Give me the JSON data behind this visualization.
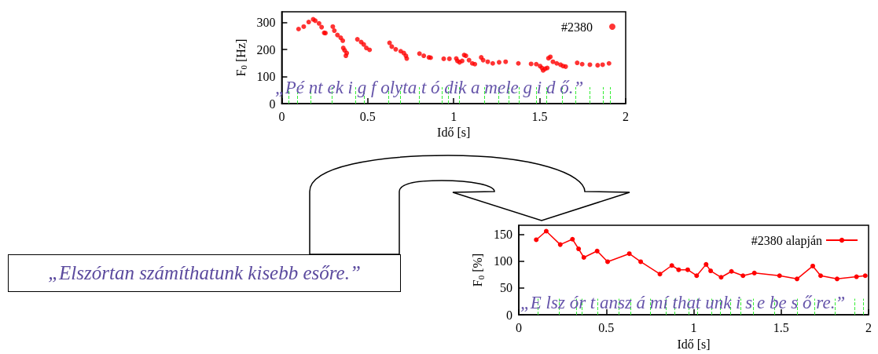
{
  "chart_data": [
    {
      "type": "scatter",
      "xlabel": "Idő [s]",
      "ylabel": "F$_{0}$ [Hz]",
      "xlim": [
        0,
        2
      ],
      "xticks": [
        0,
        0.5,
        1,
        1.5,
        2
      ],
      "ylim": [
        0,
        340
      ],
      "yticks": [
        0,
        100,
        200,
        300
      ],
      "grid": false,
      "legend": "top right",
      "marker": "circle",
      "annotations": [
        "„Pé nt ek i g f olyta t ó dik a mele g i d ő.”"
      ],
      "ref_lines": [
        {
          "axis": "x",
          "value": 0.04,
          "color": "#33ee33",
          "line_style": "dashed"
        },
        {
          "axis": "x",
          "value": 0.09,
          "color": "#33ee33",
          "line_style": "dashed"
        },
        {
          "axis": "x",
          "value": 0.17,
          "color": "#33ee33",
          "line_style": "dashed"
        },
        {
          "axis": "x",
          "value": 0.29,
          "color": "#33ee33",
          "line_style": "dashed"
        },
        {
          "axis": "x",
          "value": 0.43,
          "color": "#33ee33",
          "line_style": "dashed"
        },
        {
          "axis": "x",
          "value": 0.48,
          "color": "#33ee33",
          "line_style": "dashed"
        },
        {
          "axis": "x",
          "value": 0.62,
          "color": "#33ee33",
          "line_style": "dashed"
        },
        {
          "axis": "x",
          "value": 0.69,
          "color": "#33ee33",
          "line_style": "dashed"
        },
        {
          "axis": "x",
          "value": 0.8,
          "color": "#33ee33",
          "line_style": "dashed"
        },
        {
          "axis": "x",
          "value": 0.93,
          "color": "#33ee33",
          "line_style": "dashed"
        },
        {
          "axis": "x",
          "value": 0.97,
          "color": "#33ee33",
          "line_style": "dashed"
        },
        {
          "axis": "x",
          "value": 1.03,
          "color": "#33ee33",
          "line_style": "dashed"
        },
        {
          "axis": "x",
          "value": 1.18,
          "color": "#33ee33",
          "line_style": "dashed"
        },
        {
          "axis": "x",
          "value": 1.26,
          "color": "#33ee33",
          "line_style": "dashed"
        },
        {
          "axis": "x",
          "value": 1.32,
          "color": "#33ee33",
          "line_style": "dashed"
        },
        {
          "axis": "x",
          "value": 1.38,
          "color": "#33ee33",
          "line_style": "dashed"
        },
        {
          "axis": "x",
          "value": 1.48,
          "color": "#33ee33",
          "line_style": "dashed"
        },
        {
          "axis": "x",
          "value": 1.54,
          "color": "#33ee33",
          "line_style": "dashed"
        },
        {
          "axis": "x",
          "value": 1.63,
          "color": "#33ee33",
          "line_style": "dashed"
        },
        {
          "axis": "x",
          "value": 1.71,
          "color": "#33ee33",
          "line_style": "dashed"
        },
        {
          "axis": "x",
          "value": 1.79,
          "color": "#33ee33",
          "line_style": "dashed"
        },
        {
          "axis": "x",
          "value": 1.87,
          "color": "#33ee33",
          "line_style": "dashed"
        },
        {
          "axis": "x",
          "value": 1.91,
          "color": "#33ee33",
          "line_style": "dashed"
        }
      ],
      "series": [
        {
          "name": "#2380",
          "color": "#ff0000",
          "x": [
            0.098,
            0.128,
            0.157,
            0.183,
            0.195,
            0.217,
            0.232,
            0.247,
            0.254,
            0.297,
            0.306,
            0.324,
            0.343,
            0.355,
            0.358,
            0.366,
            0.373,
            0.378,
            0.44,
            0.462,
            0.477,
            0.492,
            0.511,
            0.627,
            0.64,
            0.663,
            0.692,
            0.71,
            0.722,
            0.727,
            0.801,
            0.826,
            0.856,
            0.866,
            0.942,
            0.975,
            1.015,
            1.022,
            1.034,
            1.049,
            1.061,
            1.071,
            1.089,
            1.108,
            1.123,
            1.16,
            1.171,
            1.198,
            1.227,
            1.264,
            1.302,
            1.376,
            1.45,
            1.48,
            1.502,
            1.513,
            1.52,
            1.532,
            1.544,
            1.551,
            1.562,
            1.577,
            1.599,
            1.621,
            1.636,
            1.651,
            1.718,
            1.747,
            1.792,
            1.837,
            1.866,
            1.903
          ],
          "values": [
            276,
            285,
            302,
            312,
            307,
            297,
            283,
            262,
            261,
            285,
            270,
            254,
            244,
            233,
            206,
            197,
            177,
            187,
            238,
            228,
            219,
            206,
            199,
            225,
            211,
            201,
            194,
            187,
            177,
            167,
            185,
            177,
            171,
            170,
            166,
            166,
            167,
            158,
            153,
            158,
            180,
            177,
            161,
            149,
            146,
            171,
            161,
            155,
            149,
            153,
            155,
            149,
            147,
            146,
            139,
            132,
            123,
            129,
            132,
            168,
            173,
            155,
            149,
            144,
            139,
            137,
            151,
            146,
            144,
            142,
            144,
            149
          ]
        }
      ]
    },
    {
      "type": "line",
      "xlabel": "Idő [s]",
      "ylabel": "F$_{0}$ [%]",
      "xlim": [
        0,
        2
      ],
      "xticks": [
        0,
        0.5,
        1,
        1.5,
        2
      ],
      "ylim": [
        0,
        167
      ],
      "yticks": [
        0,
        50,
        100,
        150
      ],
      "grid": false,
      "legend": "top right",
      "marker": "circle",
      "line_style": "solid",
      "annotations": [
        "„E lsz ór t ansz á mí that unk i s e be s ő re.”"
      ],
      "ref_lines": [
        {
          "axis": "x",
          "value": 0.11,
          "color": "#33ee33",
          "line_style": "dashed"
        },
        {
          "axis": "x",
          "value": 0.23,
          "color": "#33ee33",
          "line_style": "dashed"
        },
        {
          "axis": "x",
          "value": 0.33,
          "color": "#33ee33",
          "line_style": "dashed"
        },
        {
          "axis": "x",
          "value": 0.36,
          "color": "#33ee33",
          "line_style": "dashed"
        },
        {
          "axis": "x",
          "value": 0.45,
          "color": "#33ee33",
          "line_style": "dashed"
        },
        {
          "axis": "x",
          "value": 0.57,
          "color": "#33ee33",
          "line_style": "dashed"
        },
        {
          "axis": "x",
          "value": 0.64,
          "color": "#33ee33",
          "line_style": "dashed"
        },
        {
          "axis": "x",
          "value": 0.75,
          "color": "#33ee33",
          "line_style": "dashed"
        },
        {
          "axis": "x",
          "value": 0.84,
          "color": "#33ee33",
          "line_style": "dashed"
        },
        {
          "axis": "x",
          "value": 0.89,
          "color": "#33ee33",
          "line_style": "dashed"
        },
        {
          "axis": "x",
          "value": 0.97,
          "color": "#33ee33",
          "line_style": "dashed"
        },
        {
          "axis": "x",
          "value": 1.02,
          "color": "#33ee33",
          "line_style": "dashed"
        },
        {
          "axis": "x",
          "value": 1.1,
          "color": "#33ee33",
          "line_style": "dashed"
        },
        {
          "axis": "x",
          "value": 1.15,
          "color": "#33ee33",
          "line_style": "dashed"
        },
        {
          "axis": "x",
          "value": 1.21,
          "color": "#33ee33",
          "line_style": "dashed"
        },
        {
          "axis": "x",
          "value": 1.27,
          "color": "#33ee33",
          "line_style": "dashed"
        },
        {
          "axis": "x",
          "value": 1.34,
          "color": "#33ee33",
          "line_style": "dashed"
        },
        {
          "axis": "x",
          "value": 1.46,
          "color": "#33ee33",
          "line_style": "dashed"
        },
        {
          "axis": "x",
          "value": 1.59,
          "color": "#33ee33",
          "line_style": "dashed"
        },
        {
          "axis": "x",
          "value": 1.69,
          "color": "#33ee33",
          "line_style": "dashed"
        },
        {
          "axis": "x",
          "value": 1.81,
          "color": "#33ee33",
          "line_style": "dashed"
        },
        {
          "axis": "x",
          "value": 1.92,
          "color": "#33ee33",
          "line_style": "dashed"
        },
        {
          "axis": "x",
          "value": 1.97,
          "color": "#33ee33",
          "line_style": "dashed"
        }
      ],
      "series": [
        {
          "name": "#2380 alapján",
          "color": "#ff0000",
          "x": [
            0.1,
            0.157,
            0.237,
            0.307,
            0.342,
            0.372,
            0.448,
            0.508,
            0.632,
            0.697,
            0.807,
            0.875,
            0.914,
            0.966,
            1.017,
            1.071,
            1.097,
            1.157,
            1.216,
            1.282,
            1.347,
            1.491,
            1.591,
            1.681,
            1.726,
            1.82,
            1.931,
            1.981
          ],
          "values": [
            140,
            156,
            131,
            141,
            123,
            107,
            119,
            99,
            114,
            99,
            76,
            92,
            84,
            84,
            73,
            94,
            82,
            70,
            81,
            73,
            78,
            73,
            67,
            91,
            73,
            67,
            71,
            73
          ]
        }
      ]
    },
    {
      "type": "other",
      "annotations": [
        "„Elszórtan számíthatunk kisebb esőre.”"
      ]
    }
  ]
}
